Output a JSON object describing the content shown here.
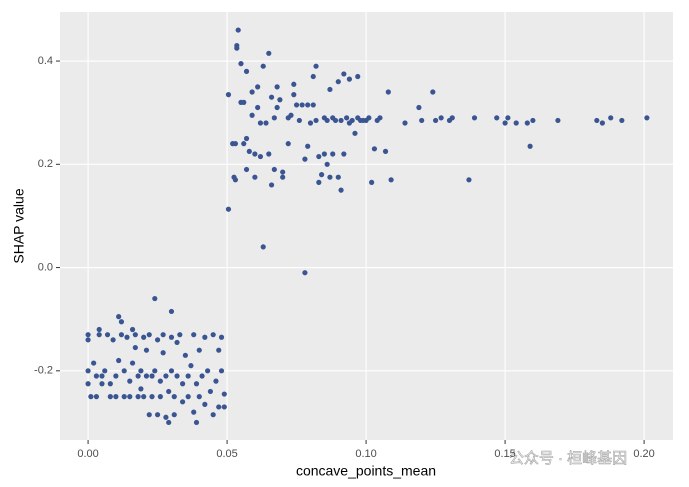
{
  "chart_data": {
    "type": "scatter",
    "x_label": "concave_points_mean",
    "y_label": "SHAP value",
    "watermark": "公众号 · 桓峰基因",
    "color": "#3a5592",
    "grid": true,
    "xlim": [
      -0.0101,
      0.2104
    ],
    "ylim": [
      -0.334,
      0.495
    ],
    "xticks": [
      {
        "value": 0,
        "label": "0.00"
      },
      0.05,
      {
        "value": 0.1,
        "label": "0.10"
      },
      0.15,
      {
        "value": 0.2,
        "label": "0.20"
      }
    ],
    "yticks": [
      -0.2,
      {
        "value": 0,
        "label": "0.0"
      },
      0.2,
      0.4
    ],
    "x": [
      0.0505,
      0.0505,
      0.052,
      0.053,
      0.0525,
      0.053,
      0.0535,
      0.0535,
      0.054,
      0.055,
      0.055,
      0.056,
      0.056,
      0.057,
      0.057,
      0.057,
      0.058,
      0.059,
      0.059,
      0.06,
      0.06,
      0.061,
      0.061,
      0.062,
      0.062,
      0.063,
      0.063,
      0.064,
      0.065,
      0.065,
      0.066,
      0.066,
      0.067,
      0.067,
      0.068,
      0.068,
      0.069,
      0.07,
      0.07,
      0.072,
      0.072,
      0.073,
      0.074,
      0.074,
      0.075,
      0.076,
      0.077,
      0.078,
      0.078,
      0.079,
      0.079,
      0.08,
      0.081,
      0.081,
      0.082,
      0.082,
      0.083,
      0.083,
      0.084,
      0.085,
      0.085,
      0.086,
      0.086,
      0.087,
      0.087,
      0.088,
      0.088,
      0.089,
      0.09,
      0.09,
      0.091,
      0.091,
      0.092,
      0.092,
      0.093,
      0.094,
      0.094,
      0.095,
      0.096,
      0.097,
      0.097,
      0.098,
      0.099,
      0.1,
      0.101,
      0.102,
      0.103,
      0.104,
      0.105,
      0.107,
      0.108,
      0.109,
      0.114,
      0.119,
      0.12,
      0.124,
      0.125,
      0.127,
      0.13,
      0.131,
      0.137,
      0.139,
      0.147,
      0.15,
      0.151,
      0.154,
      0.158,
      0.159,
      0.16,
      0.169,
      0.183,
      0.185,
      0.188,
      0.192,
      0.201,
      0.0,
      0.0,
      0.0,
      0.0,
      0.001,
      0.002,
      0.003,
      0.003,
      0.004,
      0.004,
      0.005,
      0.005,
      0.006,
      0.007,
      0.008,
      0.008,
      0.009,
      0.01,
      0.01,
      0.011,
      0.011,
      0.012,
      0.012,
      0.013,
      0.013,
      0.014,
      0.015,
      0.015,
      0.016,
      0.016,
      0.017,
      0.017,
      0.018,
      0.018,
      0.019,
      0.019,
      0.02,
      0.02,
      0.021,
      0.021,
      0.022,
      0.022,
      0.023,
      0.023,
      0.024,
      0.024,
      0.025,
      0.025,
      0.026,
      0.026,
      0.027,
      0.027,
      0.028,
      0.028,
      0.029,
      0.029,
      0.03,
      0.03,
      0.03,
      0.031,
      0.031,
      0.032,
      0.032,
      0.033,
      0.034,
      0.034,
      0.035,
      0.036,
      0.036,
      0.037,
      0.038,
      0.038,
      0.039,
      0.039,
      0.04,
      0.04,
      0.041,
      0.042,
      0.042,
      0.043,
      0.044,
      0.045,
      0.045,
      0.046,
      0.047,
      0.047,
      0.048,
      0.048,
      0.049,
      0.049
    ],
    "values": [
      0.113,
      0.335,
      0.24,
      0.24,
      0.175,
      0.17,
      0.43,
      0.425,
      0.46,
      0.32,
      0.395,
      0.32,
      0.24,
      0.25,
      0.38,
      0.19,
      0.225,
      0.295,
      0.34,
      0.22,
      0.175,
      0.35,
      0.31,
      0.215,
      0.28,
      0.04,
      0.39,
      0.28,
      0.22,
      0.415,
      0.33,
      0.16,
      0.19,
      0.29,
      0.35,
      0.31,
      0.325,
      0.175,
      0.185,
      0.24,
      0.29,
      0.295,
      0.355,
      0.335,
      0.315,
      0.285,
      0.315,
      0.21,
      -0.01,
      0.315,
      0.235,
      0.28,
      0.37,
      0.315,
      0.39,
      0.285,
      0.165,
      0.215,
      0.18,
      0.29,
      0.22,
      0.2,
      0.285,
      0.345,
      0.175,
      0.29,
      0.22,
      0.285,
      0.36,
      0.175,
      0.15,
      0.285,
      0.375,
      0.22,
      0.29,
      0.365,
      0.28,
      0.285,
      0.26,
      0.37,
      0.29,
      0.285,
      0.285,
      0.285,
      0.29,
      0.165,
      0.23,
      0.285,
      0.29,
      0.225,
      0.34,
      0.17,
      0.28,
      0.31,
      0.285,
      0.34,
      0.285,
      0.29,
      0.285,
      0.29,
      0.17,
      0.29,
      0.29,
      0.28,
      0.29,
      0.28,
      0.28,
      0.235,
      0.285,
      0.285,
      0.285,
      0.28,
      0.29,
      0.285,
      0.29,
      -0.13,
      -0.14,
      -0.2,
      -0.225,
      -0.25,
      -0.185,
      -0.21,
      -0.25,
      -0.13,
      -0.12,
      -0.225,
      -0.21,
      -0.2,
      -0.13,
      -0.25,
      -0.225,
      -0.14,
      -0.21,
      -0.25,
      -0.095,
      -0.18,
      -0.13,
      -0.105,
      -0.2,
      -0.25,
      -0.135,
      -0.22,
      -0.25,
      -0.185,
      -0.12,
      -0.13,
      -0.155,
      -0.21,
      -0.25,
      -0.2,
      -0.235,
      -0.135,
      -0.25,
      -0.21,
      -0.16,
      -0.285,
      -0.13,
      -0.21,
      -0.25,
      -0.06,
      -0.2,
      -0.14,
      -0.285,
      -0.22,
      -0.25,
      -0.13,
      -0.165,
      -0.21,
      -0.29,
      -0.3,
      -0.24,
      -0.085,
      -0.135,
      -0.2,
      -0.25,
      -0.285,
      -0.21,
      -0.145,
      -0.13,
      -0.225,
      -0.26,
      -0.17,
      -0.21,
      -0.25,
      -0.19,
      -0.28,
      -0.13,
      -0.225,
      -0.3,
      -0.25,
      -0.16,
      -0.21,
      -0.265,
      -0.135,
      -0.2,
      -0.24,
      -0.13,
      -0.285,
      -0.22,
      -0.27,
      -0.16,
      -0.135,
      -0.2,
      -0.245,
      -0.27
    ]
  }
}
